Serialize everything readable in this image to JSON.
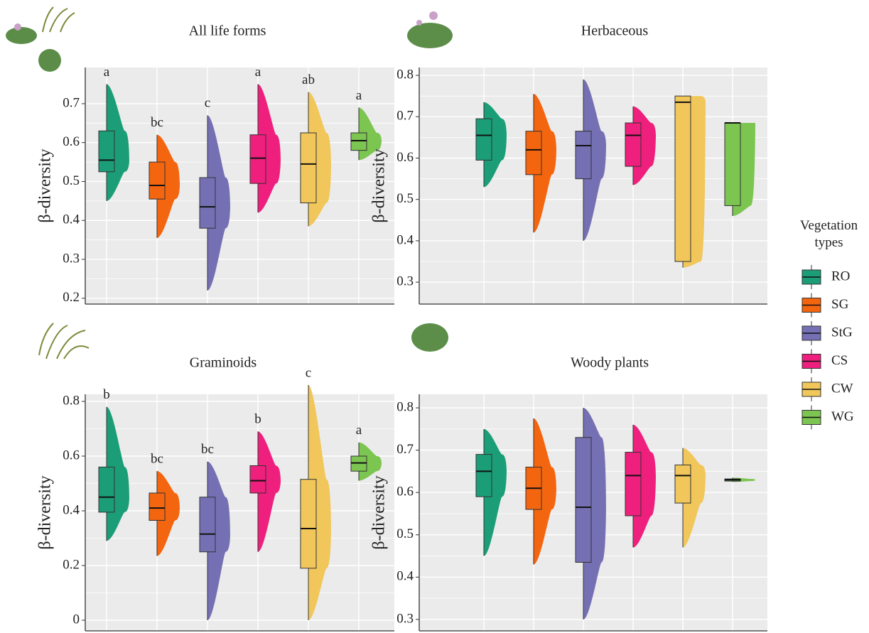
{
  "chart_data": [
    {
      "type": "box",
      "title": "All life forms",
      "y_label": "β-diversity",
      "ylim": [
        0.185,
        0.793
      ],
      "yticks": [
        0.2,
        0.3,
        0.4,
        0.5,
        0.6,
        0.7
      ],
      "series": [
        {
          "name": "RO",
          "color": "#1b9e77",
          "values": [
            0.45,
            0.525,
            0.555,
            0.63,
            0.75
          ],
          "letter": "a"
        },
        {
          "name": "SG",
          "color": "#f4650f",
          "values": [
            0.355,
            0.455,
            0.49,
            0.55,
            0.62
          ],
          "letter": "bc"
        },
        {
          "name": "StG",
          "color": "#7570b3",
          "values": [
            0.22,
            0.38,
            0.435,
            0.51,
            0.67
          ],
          "letter": "c"
        },
        {
          "name": "CS",
          "color": "#ef1f7e",
          "values": [
            0.42,
            0.495,
            0.56,
            0.62,
            0.75
          ],
          "letter": "a"
        },
        {
          "name": "CW",
          "color": "#f1c75b",
          "values": [
            0.385,
            0.445,
            0.545,
            0.625,
            0.73
          ],
          "letter": "ab"
        },
        {
          "name": "WG",
          "color": "#7cc551",
          "values": [
            0.555,
            0.58,
            0.605,
            0.625,
            0.69
          ],
          "letter": "a"
        }
      ]
    },
    {
      "type": "box",
      "title": "Herbaceous",
      "y_label": "β-diversity",
      "ylim": [
        0.247,
        0.819
      ],
      "yticks": [
        0.3,
        0.4,
        0.5,
        0.6,
        0.7,
        0.8
      ],
      "series": [
        {
          "name": "RO",
          "color": "#1b9e77",
          "values": [
            0.53,
            0.595,
            0.655,
            0.695,
            0.735
          ]
        },
        {
          "name": "SG",
          "color": "#f4650f",
          "values": [
            0.42,
            0.56,
            0.62,
            0.665,
            0.755
          ]
        },
        {
          "name": "StG",
          "color": "#7570b3",
          "values": [
            0.4,
            0.55,
            0.63,
            0.665,
            0.79
          ]
        },
        {
          "name": "CS",
          "color": "#ef1f7e",
          "values": [
            0.535,
            0.58,
            0.655,
            0.685,
            0.725
          ]
        },
        {
          "name": "CW",
          "color": "#f1c75b",
          "values": [
            0.335,
            0.35,
            0.735,
            0.75,
            0.75
          ]
        },
        {
          "name": "WG",
          "color": "#7cc551",
          "values": [
            0.46,
            0.485,
            0.685,
            0.685,
            0.685
          ]
        }
      ]
    },
    {
      "type": "box",
      "title": "Graminoids",
      "y_label": "β-diversity",
      "ylim": [
        -0.039,
        0.826
      ],
      "yticks": [
        0,
        0.2,
        0.4,
        0.6,
        0.8
      ],
      "series": [
        {
          "name": "RO",
          "color": "#1b9e77",
          "values": [
            0.29,
            0.395,
            0.45,
            0.56,
            0.78
          ],
          "letter": "b"
        },
        {
          "name": "SG",
          "color": "#f4650f",
          "values": [
            0.235,
            0.365,
            0.41,
            0.465,
            0.545
          ],
          "letter": "bc"
        },
        {
          "name": "StG",
          "color": "#7570b3",
          "values": [
            0,
            0.25,
            0.315,
            0.45,
            0.58
          ],
          "letter": "bc"
        },
        {
          "name": "CS",
          "color": "#ef1f7e",
          "values": [
            0.25,
            0.465,
            0.51,
            0.565,
            0.69
          ],
          "letter": "b"
        },
        {
          "name": "CW",
          "color": "#f1c75b",
          "values": [
            0,
            0.19,
            0.335,
            0.515,
            0.86
          ],
          "letter": "c"
        },
        {
          "name": "WG",
          "color": "#7cc551",
          "values": [
            0.51,
            0.545,
            0.575,
            0.6,
            0.65
          ],
          "letter": "a"
        }
      ]
    },
    {
      "type": "box",
      "title": "Woody plants",
      "y_label": "β-diversity",
      "ylim": [
        0.273,
        0.832
      ],
      "yticks": [
        0.3,
        0.4,
        0.5,
        0.6,
        0.7,
        0.8
      ],
      "series": [
        {
          "name": "RO",
          "color": "#1b9e77",
          "values": [
            0.45,
            0.59,
            0.65,
            0.69,
            0.75
          ]
        },
        {
          "name": "SG",
          "color": "#f4650f",
          "values": [
            0.43,
            0.56,
            0.61,
            0.66,
            0.775
          ]
        },
        {
          "name": "StG",
          "color": "#7570b3",
          "values": [
            0.3,
            0.435,
            0.565,
            0.73,
            0.8
          ]
        },
        {
          "name": "CS",
          "color": "#ef1f7e",
          "values": [
            0.47,
            0.545,
            0.64,
            0.695,
            0.76
          ]
        },
        {
          "name": "CW",
          "color": "#f1c75b",
          "values": [
            0.47,
            0.575,
            0.64,
            0.665,
            0.705
          ]
        },
        {
          "name": "WG",
          "color": "#7cc551",
          "values": [
            0.625,
            0.627,
            0.63,
            0.632,
            0.635
          ]
        }
      ]
    }
  ],
  "legend_title": "Vegetation types"
}
